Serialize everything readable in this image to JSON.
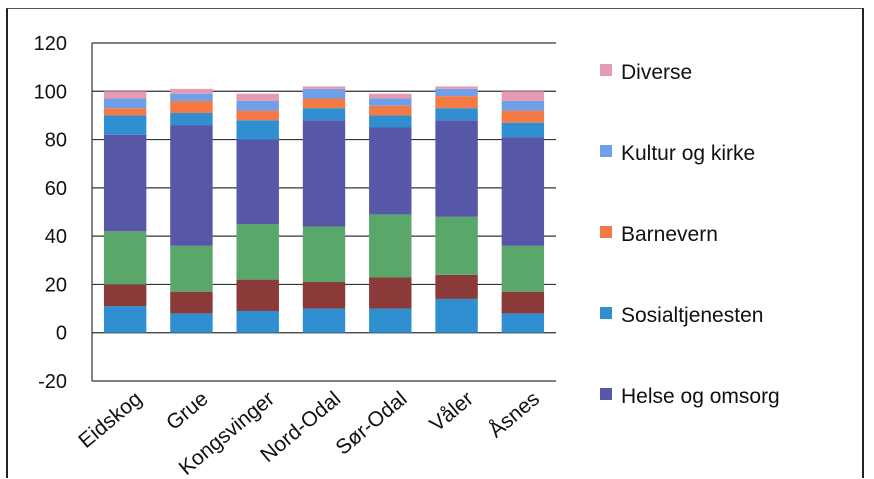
{
  "chart_data": {
    "type": "bar",
    "stacked": true,
    "title": "",
    "xlabel": "",
    "ylabel": "",
    "ylim": [
      -20,
      120
    ],
    "yticks": [
      120,
      100,
      80,
      60,
      40,
      20,
      0,
      -20
    ],
    "grid": true,
    "legend_position": "right",
    "categories": [
      "Eidskog",
      "Grue",
      "Kongsvinger",
      "Nord-Odal",
      "Sør-Odal",
      "Våler",
      "Åsnes"
    ],
    "series": [
      {
        "name": "",
        "color": "#2f8fd0",
        "values": [
          11,
          8,
          9,
          10,
          10,
          14,
          8
        ]
      },
      {
        "name": "",
        "color": "#8b3a3a",
        "values": [
          9,
          9,
          13,
          11,
          13,
          10,
          9
        ]
      },
      {
        "name": "",
        "color": "#59a86a",
        "values": [
          22,
          19,
          23,
          23,
          26,
          24,
          19
        ]
      },
      {
        "name": "Helse og omsorg",
        "color": "#5757a8",
        "values": [
          40,
          50,
          35,
          44,
          36,
          40,
          45
        ]
      },
      {
        "name": "Sosialtjenesten",
        "color": "#2f8fd0",
        "values": [
          8,
          5,
          8,
          5,
          5,
          5,
          6
        ]
      },
      {
        "name": "Barnevern",
        "color": "#f47a45",
        "values": [
          3,
          5,
          4,
          4,
          4,
          5,
          5
        ]
      },
      {
        "name": "Kultur og kirke",
        "color": "#6f9fe8",
        "values": [
          4,
          3,
          4,
          4,
          3,
          3,
          4
        ]
      },
      {
        "name": "Diverse",
        "color": "#e39ab2",
        "values": [
          3,
          2,
          3,
          1,
          2,
          1,
          4
        ]
      }
    ],
    "legend": [
      "Diverse",
      "Kultur og kirke",
      "Barnevern",
      "Sosialtjenesten",
      "Helse og omsorg"
    ]
  }
}
